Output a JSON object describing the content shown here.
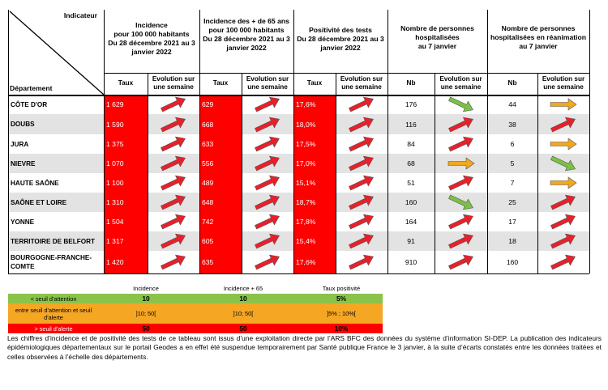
{
  "header": {
    "indicator": "Indicateur",
    "department": "Département",
    "groups": [
      {
        "lines": [
          "Incidence",
          "pour 100 000 habitants",
          "Du 28 décembre 2021 au 3",
          "janvier 2022"
        ]
      },
      {
        "lines": [
          "Incidence des + de 65 ans",
          "pour 100 000 habitants",
          "Du 28 décembre 2021 au 3",
          "janvier 2022"
        ]
      },
      {
        "lines": [
          "Positivité des tests",
          "Du 28 décembre 2021 au 3",
          "janvier 2022"
        ]
      },
      {
        "lines": [
          "Nombre de personnes",
          "hospitalisées",
          "au 7 janvier"
        ]
      },
      {
        "lines": [
          "Nombre de personnes",
          "hospitalisées en réanimation",
          "au 7 janvier"
        ]
      }
    ],
    "sub": {
      "taux": "Taux",
      "nb": "Nb",
      "evolution": [
        "Evolution sur",
        "une semaine"
      ]
    }
  },
  "rows": [
    {
      "name": [
        "CÔTE D'OR"
      ],
      "inc": "1 629",
      "inc_arrow": "up-red",
      "inc65": "629",
      "inc65_arrow": "up-red",
      "pos": "17,6%",
      "pos_arrow": "up-red",
      "hosp": "176",
      "hosp_arrow": "down-green",
      "rea": "44",
      "rea_arrow": "flat-orange"
    },
    {
      "name": [
        "DOUBS"
      ],
      "inc": "1 590",
      "inc_arrow": "up-red",
      "inc65": "668",
      "inc65_arrow": "up-red",
      "pos": "18,0%",
      "pos_arrow": "up-red",
      "hosp": "116",
      "hosp_arrow": "up-red",
      "rea": "38",
      "rea_arrow": "up-red"
    },
    {
      "name": [
        "JURA"
      ],
      "inc": "1 375",
      "inc_arrow": "up-red",
      "inc65": "633",
      "inc65_arrow": "up-red",
      "pos": "17,5%",
      "pos_arrow": "up-red",
      "hosp": "84",
      "hosp_arrow": "up-red",
      "rea": "6",
      "rea_arrow": "flat-orange"
    },
    {
      "name": [
        "NIEVRE"
      ],
      "inc": "1 070",
      "inc_arrow": "up-red",
      "inc65": "556",
      "inc65_arrow": "up-red",
      "pos": "17,0%",
      "pos_arrow": "up-red",
      "hosp": "68",
      "hosp_arrow": "flat-orange",
      "rea": "5",
      "rea_arrow": "down-green"
    },
    {
      "name": [
        "HAUTE SAÔNE"
      ],
      "inc": "1 100",
      "inc_arrow": "up-red",
      "inc65": "489",
      "inc65_arrow": "up-red",
      "pos": "15,1%",
      "pos_arrow": "up-red",
      "hosp": "51",
      "hosp_arrow": "up-red",
      "rea": "7",
      "rea_arrow": "flat-orange"
    },
    {
      "name": [
        "SAÔNE ET LOIRE"
      ],
      "inc": "1 310",
      "inc_arrow": "up-red",
      "inc65": "648",
      "inc65_arrow": "up-red",
      "pos": "18,7%",
      "pos_arrow": "up-red",
      "hosp": "160",
      "hosp_arrow": "down-green",
      "rea": "25",
      "rea_arrow": "up-red"
    },
    {
      "name": [
        "YONNE"
      ],
      "inc": "1 504",
      "inc_arrow": "up-red",
      "inc65": "742",
      "inc65_arrow": "up-red",
      "pos": "17,8%",
      "pos_arrow": "up-red",
      "hosp": "164",
      "hosp_arrow": "up-red",
      "rea": "17",
      "rea_arrow": "up-red"
    },
    {
      "name": [
        "TERRITOIRE DE BELFORT"
      ],
      "inc": "1 317",
      "inc_arrow": "up-red",
      "inc65": "605",
      "inc65_arrow": "up-red",
      "pos": "15,4%",
      "pos_arrow": "up-red",
      "hosp": "91",
      "hosp_arrow": "up-red",
      "rea": "18",
      "rea_arrow": "up-red"
    },
    {
      "name": [
        "BOURGOGNE-FRANCHE-",
        "COMTE"
      ],
      "inc": "1 420",
      "inc_arrow": "up-red",
      "inc65": "635",
      "inc65_arrow": "up-red",
      "pos": "17,6%",
      "pos_arrow": "up-red",
      "hosp": "910",
      "hosp_arrow": "up-red",
      "rea": "160",
      "rea_arrow": "up-red"
    }
  ],
  "legend": {
    "headers": [
      "Incidence",
      "Incidence + 65",
      "Taux positivité"
    ],
    "rows": [
      {
        "label": [
          "< seuil d'attention"
        ],
        "color": "#8bc34a",
        "values": [
          "10",
          "10",
          "5%"
        ]
      },
      {
        "label": [
          "entre seuil d'attention et seuil",
          "d'alerte"
        ],
        "color": "#f5a623",
        "values": [
          "]10; 50[",
          "]10; 50[",
          "]5% ; 10%["
        ]
      },
      {
        "label": [
          "> seuil d'alerte"
        ],
        "color": "#ff0000",
        "values": [
          "50",
          "50",
          "10%"
        ]
      }
    ]
  },
  "colors": {
    "red": "#ff0000",
    "grey": "#e3e3e3",
    "arrow_red": "#e8202a",
    "arrow_green": "#7bc143",
    "arrow_orange": "#f2a81d"
  },
  "footer": "Les chiffres d’incidence et de positivité des tests de ce tableau sont issus d’une exploitation directe par l’ARS BFC des données du système d’information SI-DEP. La publication des indicateurs épidémiologiques départementaux sur le portail Geodes a en effet été suspendue temporairement par Santé publique France le 3 janvier, à la suite d’écarts constatés entre les données traitées et celles observées à l’échelle des départements."
}
